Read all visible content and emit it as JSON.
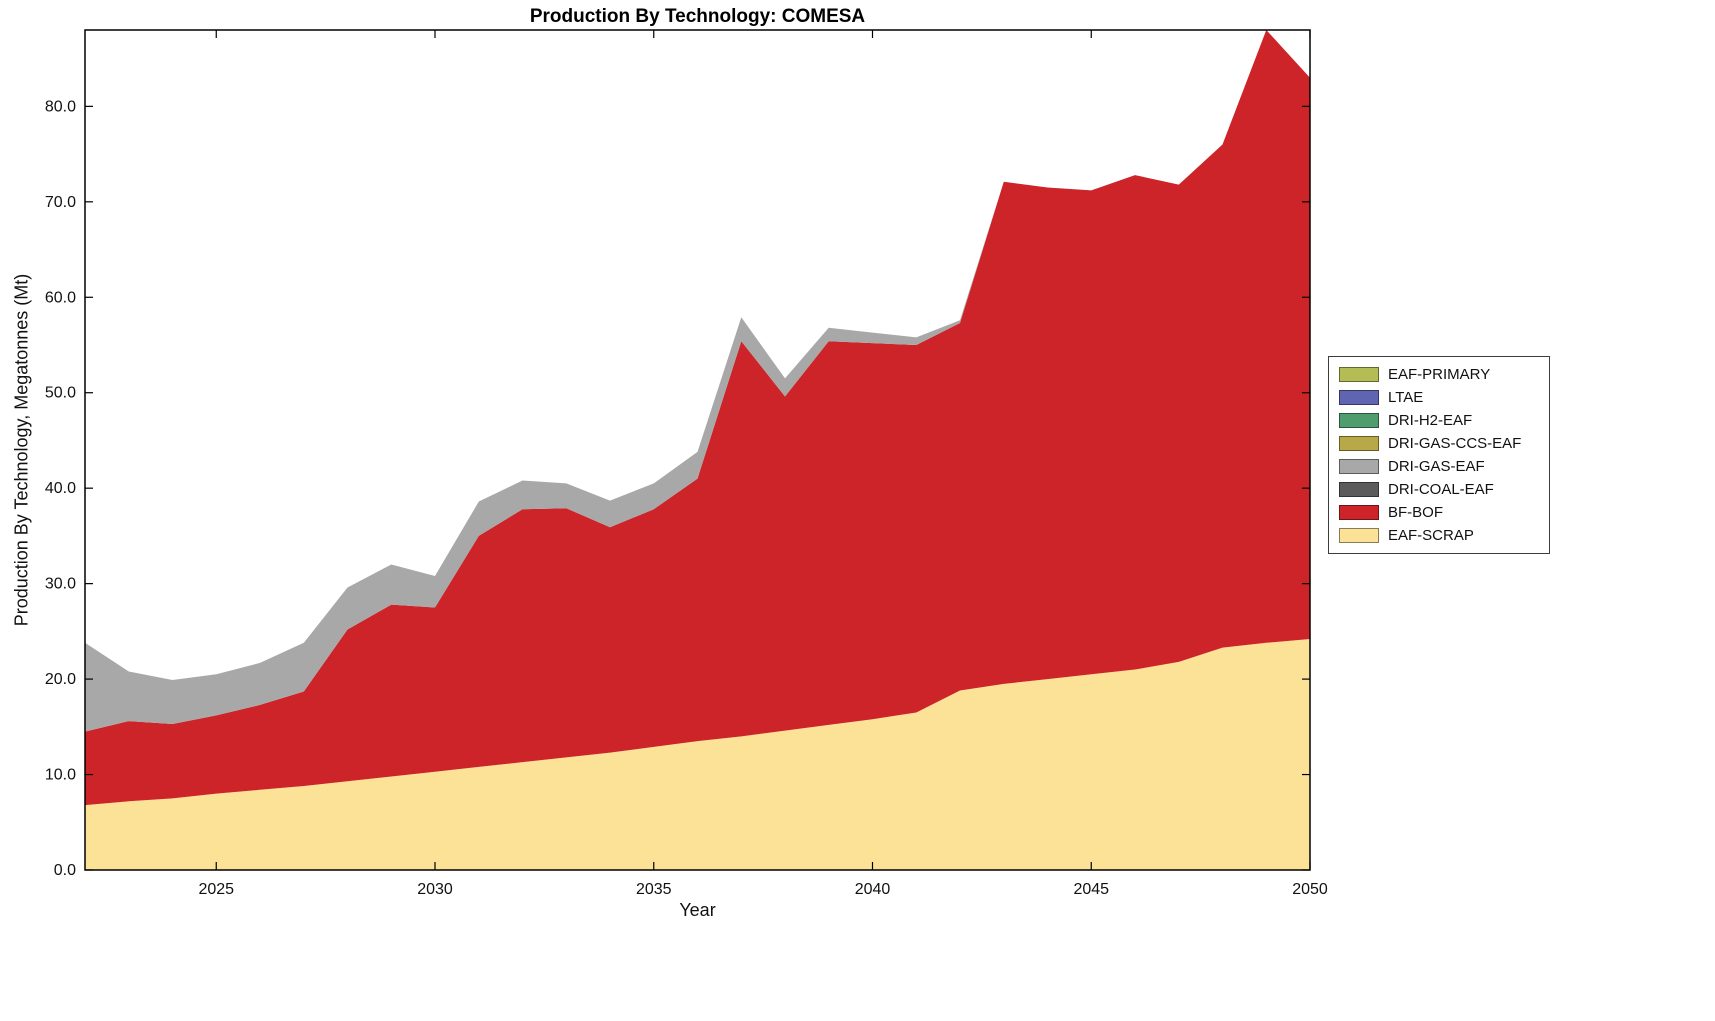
{
  "chart_data": {
    "type": "area",
    "title": "Production By Technology: COMESA",
    "xlabel": "Year",
    "ylabel": "Production By Technology, Megatonnes (Mt)",
    "xlim": [
      2022,
      2050
    ],
    "ylim": [
      0,
      88
    ],
    "grid": false,
    "legend_position": "right-outside",
    "legend_order": "reverse-of-stack (top entry = topmost layer)",
    "x_ticks": [
      2025,
      2030,
      2035,
      2040,
      2045,
      2050
    ],
    "x_tick_labels": [
      "2025",
      "2030",
      "2035",
      "2040",
      "2045",
      "2050"
    ],
    "y_ticks": [
      0,
      10,
      20,
      30,
      40,
      50,
      60,
      70,
      80
    ],
    "y_tick_labels": [
      "0.0",
      "10.0",
      "20.0",
      "30.0",
      "40.0",
      "50.0",
      "60.0",
      "70.0",
      "80.0"
    ],
    "x": [
      2022,
      2023,
      2024,
      2025,
      2026,
      2027,
      2028,
      2029,
      2030,
      2031,
      2032,
      2033,
      2034,
      2035,
      2036,
      2037,
      2038,
      2039,
      2040,
      2041,
      2042,
      2043,
      2044,
      2045,
      2046,
      2047,
      2048,
      2049,
      2050
    ],
    "series": [
      {
        "name": "EAF-SCRAP",
        "color": "#fbe296",
        "values": [
          6.8,
          7.2,
          7.5,
          8.0,
          8.4,
          8.8,
          9.3,
          9.8,
          10.3,
          10.8,
          11.3,
          11.8,
          12.3,
          12.9,
          13.5,
          14.0,
          14.6,
          15.2,
          15.8,
          16.5,
          18.8,
          19.5,
          20.0,
          20.5,
          21.0,
          21.8,
          23.3,
          23.8,
          24.2
        ]
      },
      {
        "name": "BF-BOF",
        "color": "#cc2428",
        "values": [
          7.7,
          8.4,
          7.8,
          8.2,
          8.9,
          9.9,
          15.9,
          18.0,
          17.2,
          24.2,
          26.5,
          26.1,
          23.6,
          24.9,
          27.5,
          41.4,
          35.0,
          40.2,
          39.4,
          38.5,
          38.5,
          52.6,
          51.5,
          50.7,
          51.8,
          50.0,
          52.7,
          64.2,
          58.8
        ]
      },
      {
        "name": "DRI-COAL-EAF",
        "color": "#5b5b5b",
        "values": [
          0,
          0,
          0,
          0,
          0,
          0,
          0,
          0,
          0,
          0,
          0,
          0,
          0,
          0,
          0,
          0,
          0,
          0,
          0,
          0,
          0,
          0,
          0,
          0,
          0,
          0,
          0,
          0,
          0
        ]
      },
      {
        "name": "DRI-GAS-EAF",
        "color": "#a8a8a8",
        "values": [
          9.3,
          5.2,
          4.6,
          4.3,
          4.4,
          5.1,
          4.4,
          4.2,
          3.3,
          3.6,
          3.0,
          2.6,
          2.8,
          2.7,
          2.8,
          2.5,
          1.9,
          1.4,
          1.1,
          0.8,
          0.3,
          0,
          0,
          0,
          0,
          0,
          0,
          0,
          0
        ]
      },
      {
        "name": "DRI-GAS-CCS-EAF",
        "color": "#b9a847",
        "values": [
          0,
          0,
          0,
          0,
          0,
          0,
          0,
          0,
          0,
          0,
          0,
          0,
          0,
          0,
          0,
          0,
          0,
          0,
          0,
          0,
          0,
          0,
          0,
          0,
          0,
          0,
          0,
          0,
          0
        ]
      },
      {
        "name": "DRI-H2-EAF",
        "color": "#4f9d6e",
        "values": [
          0,
          0,
          0,
          0,
          0,
          0,
          0,
          0,
          0,
          0,
          0,
          0,
          0,
          0,
          0,
          0,
          0,
          0,
          0,
          0,
          0,
          0,
          0,
          0,
          0,
          0,
          0,
          0,
          0
        ]
      },
      {
        "name": "LTAE",
        "color": "#6065b2",
        "values": [
          0,
          0,
          0,
          0,
          0,
          0,
          0,
          0,
          0,
          0,
          0,
          0,
          0,
          0,
          0,
          0,
          0,
          0,
          0,
          0,
          0,
          0,
          0,
          0,
          0,
          0,
          0,
          0,
          0
        ]
      },
      {
        "name": "EAF-PRIMARY",
        "color": "#b4bd55",
        "values": [
          0,
          0,
          0,
          0,
          0,
          0,
          0,
          0,
          0,
          0,
          0,
          0,
          0,
          0,
          0,
          0,
          0,
          0,
          0,
          0,
          0,
          0,
          0,
          0,
          0,
          0,
          0,
          0,
          0
        ]
      }
    ]
  }
}
